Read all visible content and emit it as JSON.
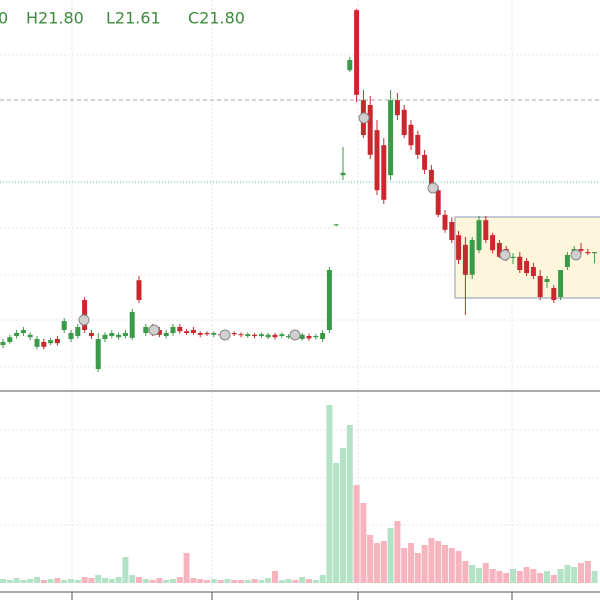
{
  "chart_data": {
    "type": "candlestick",
    "ohlc_texts": [
      "0",
      "H21.80",
      "L21.61",
      "C21.80"
    ],
    "categories": [
      null,
      null,
      null,
      null,
      null,
      null,
      null,
      null,
      null,
      null,
      null,
      null,
      null,
      null,
      null,
      null,
      null,
      null,
      null,
      null,
      null,
      null,
      null,
      null,
      null,
      null,
      null,
      null,
      null,
      null,
      null,
      null,
      null,
      null,
      null,
      null,
      null,
      null,
      null,
      null,
      null,
      null,
      null,
      null,
      null,
      null,
      null,
      null,
      null,
      null,
      null,
      null,
      null,
      null,
      null,
      null,
      null,
      null,
      null,
      null,
      null,
      null,
      null,
      null,
      null,
      null,
      null,
      null,
      null,
      null,
      null,
      null,
      null,
      null,
      null,
      null,
      null,
      null,
      null,
      null,
      null,
      null,
      null,
      null,
      null,
      null,
      null,
      null
    ],
    "open": [
      20.25,
      20.3,
      20.4,
      20.45,
      20.38,
      20.22,
      20.3,
      20.28,
      20.35,
      20.5,
      20.35,
      20.4,
      21.0,
      20.45,
      19.85,
      20.35,
      20.4,
      20.38,
      20.4,
      20.37,
      21.33,
      20.45,
      20.55,
      20.5,
      20.4,
      20.45,
      20.55,
      20.48,
      20.5,
      20.45,
      20.45,
      20.42,
      20.43,
      20.42,
      20.45,
      20.43,
      20.4,
      20.42,
      20.4,
      20.38,
      20.42,
      20.4,
      20.38,
      20.4,
      20.35,
      20.4,
      20.38,
      20.35,
      20.5,
      22.25,
      23.08,
      24.83,
      25.83,
      24.33,
      24.25,
      23.83,
      23.58,
      23.08,
      24.33,
      24.17,
      23.92,
      23.75,
      23.42,
      23.17,
      22.83,
      22.42,
      22.3,
      22.08,
      21.92,
      21.42,
      21.83,
      22.33,
      22.08,
      21.95,
      21.85,
      21.7,
      21.72,
      21.65,
      21.55,
      21.4,
      21.3,
      21.2,
      21.05,
      21.55,
      21.8,
      21.85,
      21.8,
      21.78
    ],
    "high": [
      20.35,
      20.42,
      20.5,
      20.55,
      20.46,
      20.4,
      20.35,
      20.37,
      20.4,
      20.7,
      20.5,
      20.6,
      21.05,
      20.5,
      20.45,
      20.46,
      20.5,
      20.46,
      20.5,
      20.85,
      21.4,
      20.6,
      20.6,
      20.55,
      20.5,
      20.6,
      20.6,
      20.52,
      20.55,
      20.48,
      20.48,
      20.48,
      20.47,
      20.48,
      20.48,
      20.46,
      20.46,
      20.45,
      20.46,
      20.45,
      20.45,
      20.46,
      20.43,
      20.43,
      20.45,
      20.44,
      20.43,
      20.5,
      21.55,
      22.27,
      23.55,
      25.05,
      25.85,
      24.5,
      24.4,
      24.0,
      23.7,
      24.5,
      24.45,
      24.25,
      24.0,
      23.82,
      23.5,
      23.25,
      22.9,
      22.5,
      22.38,
      22.15,
      22.05,
      22.05,
      22.4,
      22.4,
      22.12,
      22.0,
      21.9,
      21.78,
      21.8,
      21.7,
      21.62,
      21.5,
      21.4,
      21.25,
      21.5,
      21.8,
      21.9,
      21.95,
      21.85,
      21.8
    ],
    "low": [
      20.2,
      20.27,
      20.36,
      20.4,
      20.33,
      20.18,
      20.18,
      20.25,
      20.24,
      20.45,
      20.3,
      20.36,
      20.45,
      20.35,
      19.8,
      20.3,
      20.36,
      20.34,
      20.36,
      20.33,
      20.95,
      20.4,
      20.4,
      20.38,
      20.36,
      20.4,
      20.44,
      20.42,
      20.42,
      20.38,
      20.4,
      20.38,
      20.38,
      20.38,
      20.4,
      20.38,
      20.37,
      20.36,
      20.37,
      20.35,
      20.34,
      20.37,
      20.35,
      20.33,
      20.32,
      20.32,
      20.34,
      20.3,
      20.45,
      22.23,
      23.0,
      24.8,
      24.3,
      23.7,
      23.35,
      22.75,
      22.6,
      23.0,
      24.0,
      23.7,
      23.5,
      23.35,
      23.1,
      22.78,
      22.38,
      22.12,
      21.95,
      21.6,
      20.75,
      21.35,
      21.78,
      21.95,
      21.78,
      21.7,
      21.65,
      21.6,
      21.45,
      21.4,
      21.35,
      21.0,
      21.2,
      20.95,
      21.0,
      21.5,
      21.7,
      21.78,
      21.75,
      21.61
    ],
    "close": [
      20.3,
      20.38,
      20.45,
      20.5,
      20.42,
      20.35,
      20.22,
      20.33,
      20.28,
      20.65,
      20.45,
      20.55,
      20.5,
      20.4,
      20.35,
      20.42,
      20.45,
      20.42,
      20.45,
      20.8,
      21.0,
      20.55,
      20.45,
      20.42,
      20.45,
      20.55,
      20.48,
      20.45,
      20.45,
      20.42,
      20.43,
      20.45,
      20.42,
      20.45,
      20.43,
      20.42,
      20.43,
      20.4,
      20.43,
      20.42,
      20.38,
      20.43,
      20.4,
      20.37,
      20.42,
      20.36,
      20.4,
      20.45,
      21.5,
      22.26,
      23.12,
      25.0,
      24.42,
      23.75,
      23.42,
      22.83,
      22.67,
      24.33,
      24.08,
      23.75,
      23.58,
      23.42,
      23.17,
      22.83,
      22.42,
      22.17,
      22.0,
      21.67,
      21.42,
      22.0,
      22.33,
      22.0,
      21.83,
      21.72,
      21.7,
      21.72,
      21.5,
      21.45,
      21.4,
      21.05,
      21.35,
      21.0,
      21.5,
      21.75,
      21.85,
      21.82,
      21.78,
      21.8
    ],
    "volume": [
      4,
      3,
      5,
      3,
      4,
      6,
      3,
      4,
      5,
      3,
      4,
      3,
      6,
      5,
      8,
      5,
      4,
      6,
      26,
      8,
      6,
      4,
      3,
      5,
      3,
      4,
      6,
      30,
      5,
      4,
      3,
      4,
      3,
      4,
      3,
      3,
      3,
      4,
      3,
      5,
      12,
      3,
      4,
      3,
      6,
      4,
      3,
      8,
      178,
      120,
      135,
      158,
      98,
      80,
      48,
      40,
      42,
      55,
      62,
      35,
      40,
      30,
      38,
      45,
      42,
      38,
      35,
      32,
      22,
      18,
      15,
      20,
      14,
      12,
      10,
      14,
      12,
      16,
      14,
      10,
      12,
      8,
      14,
      18,
      16,
      20,
      22,
      12
    ],
    "ylim": [
      19.5,
      26.0
    ],
    "vlim": [
      0,
      188
    ],
    "up_color": "#3a9a48",
    "down_color": "#c8282e",
    "volume_up_color": "#b4e2c6",
    "volume_down_color": "#f6b4bf"
  }
}
